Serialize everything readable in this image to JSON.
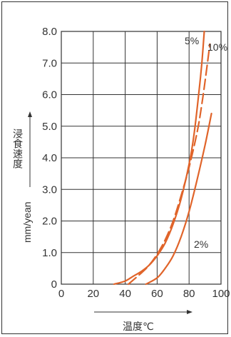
{
  "chart_data": {
    "type": "line",
    "ylabel": "浸食速度",
    "yunit": "mm/yean",
    "xlabel": "温度℃",
    "xlim": [
      0,
      100
    ],
    "ylim": [
      0,
      8
    ],
    "x_ticks": [
      "0",
      "20",
      "40",
      "60",
      "80",
      "100"
    ],
    "y_ticks": [
      "0",
      "1.0",
      "2.0",
      "3.0",
      "4.0",
      "5.0",
      "6.0",
      "7.0",
      "8.0"
    ],
    "grid": true,
    "line_color": "#e0642a",
    "series": [
      {
        "name": "2%",
        "style": "solid",
        "points": [
          [
            53,
            0
          ],
          [
            60,
            0.2
          ],
          [
            65,
            0.5
          ],
          [
            70,
            0.9
          ],
          [
            75,
            1.5
          ],
          [
            80,
            2.3
          ],
          [
            85,
            3.3
          ],
          [
            90,
            4.4
          ],
          [
            94,
            5.4
          ]
        ]
      },
      {
        "name": "5%",
        "style": "solid",
        "points": [
          [
            33,
            0
          ],
          [
            40,
            0.1
          ],
          [
            45,
            0.25
          ],
          [
            50,
            0.4
          ],
          [
            55,
            0.6
          ],
          [
            60,
            0.9
          ],
          [
            65,
            1.3
          ],
          [
            70,
            1.9
          ],
          [
            75,
            2.7
          ],
          [
            80,
            3.8
          ],
          [
            83,
            4.7
          ],
          [
            86,
            6.0
          ],
          [
            88,
            7.0
          ],
          [
            89.5,
            8.0
          ]
        ]
      },
      {
        "name": "10%",
        "style": "dashed",
        "points": [
          [
            42,
            0
          ],
          [
            50,
            0.35
          ],
          [
            55,
            0.6
          ],
          [
            60,
            0.95
          ],
          [
            65,
            1.4
          ],
          [
            70,
            2.0
          ],
          [
            75,
            2.8
          ],
          [
            80,
            3.7
          ],
          [
            85,
            4.8
          ],
          [
            88,
            5.7
          ],
          [
            91,
            6.8
          ],
          [
            93,
            7.6
          ]
        ]
      }
    ]
  }
}
